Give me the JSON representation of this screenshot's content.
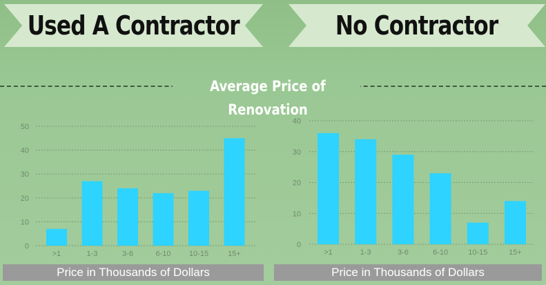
{
  "banners": {
    "left": "Used A Contractor",
    "right": "No Contractor"
  },
  "section_title": "Average Price of Renovation",
  "colors": {
    "bar": "#2ed3ff",
    "banner_bg": "#d6e9cf",
    "axis_label_bg": "#9a9a9a",
    "tick_text": "#6f8a6d",
    "grid": "#7a9a76"
  },
  "chart_data": [
    {
      "type": "bar",
      "title": "Used A Contractor",
      "categories": [
        ">1",
        "1-3",
        "3-6",
        "6-10",
        "10-15",
        "15+"
      ],
      "values": [
        7,
        27,
        24,
        22,
        23,
        45
      ],
      "xlabel": "Price in Thousands of Dollars",
      "ylabel": "",
      "ylim": [
        0,
        50
      ],
      "yticks": [
        0,
        10,
        20,
        30,
        40,
        50
      ],
      "grid": true
    },
    {
      "type": "bar",
      "title": "No Contractor",
      "categories": [
        ">1",
        "1-3",
        "3-6",
        "6-10",
        "10-15",
        "15+"
      ],
      "values": [
        36,
        34,
        29,
        23,
        7,
        14
      ],
      "xlabel": "Price in Thousands of Dollars",
      "ylabel": "",
      "ylim": [
        0,
        40
      ],
      "yticks": [
        0,
        10,
        20,
        30,
        40
      ],
      "grid": true
    }
  ]
}
